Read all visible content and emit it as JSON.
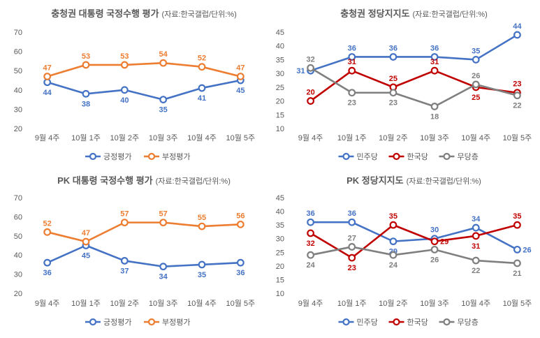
{
  "chart_data": [
    {
      "type": "line",
      "title": "충청권 대통령 국정수행 평가",
      "subtitle": "(자료:한국갤럽/단위:%)",
      "categories": [
        "9월 4주",
        "10월 1주",
        "10월 2주",
        "10월 3주",
        "10월 4주",
        "10월 5주"
      ],
      "ylim": [
        20,
        70
      ],
      "yticks": [
        20,
        30,
        40,
        50,
        60,
        70
      ],
      "series": [
        {
          "name": "긍정평가",
          "color": "#4472C4",
          "values": [
            44,
            38,
            40,
            35,
            41,
            45
          ],
          "label_pos": [
            "below",
            "below",
            "below",
            "below",
            "below",
            "below"
          ]
        },
        {
          "name": "부정평가",
          "color": "#ED7D31",
          "values": [
            47,
            53,
            53,
            54,
            52,
            47
          ],
          "label_pos": [
            "above",
            "above",
            "above",
            "above",
            "above",
            "above"
          ]
        }
      ],
      "legend": "bottom"
    },
    {
      "type": "line",
      "title": "충청권 정당지지도",
      "subtitle": "(자료:한국갤럽/단위:%)",
      "categories": [
        "9월 4주",
        "10월 1주",
        "10월 2주",
        "10월 3주",
        "10월 4주",
        "10월 5주"
      ],
      "ylim": [
        10,
        45
      ],
      "yticks": [
        10,
        15,
        20,
        25,
        30,
        35,
        40,
        45
      ],
      "series": [
        {
          "name": "민주당",
          "color": "#4472C4",
          "values": [
            31,
            36,
            36,
            36,
            35,
            44
          ],
          "label_pos": [
            "left",
            "above",
            "above",
            "above",
            "above",
            "above"
          ]
        },
        {
          "name": "한국당",
          "color": "#C00000",
          "values": [
            20,
            31,
            25,
            31,
            25,
            23
          ],
          "label_pos": [
            "above",
            "above",
            "above",
            "above",
            "below",
            "above"
          ]
        },
        {
          "name": "무당층",
          "color": "#7F7F7F",
          "values": [
            32,
            23,
            23,
            18,
            26,
            22
          ],
          "label_pos": [
            "above",
            "below",
            "below",
            "below",
            "above",
            "below"
          ]
        }
      ],
      "legend": "bottom"
    },
    {
      "type": "line",
      "title": "PK 대통령 국정수행 평가",
      "subtitle": "(자료:한국갤럽/단위:%)",
      "categories": [
        "9월 4주",
        "10월 1주",
        "10월 2주",
        "10월 3주",
        "10월 4주",
        "10월 5주"
      ],
      "ylim": [
        20,
        70
      ],
      "yticks": [
        20,
        30,
        40,
        50,
        60,
        70
      ],
      "series": [
        {
          "name": "긍정평가",
          "color": "#4472C4",
          "values": [
            36,
            45,
            37,
            34,
            35,
            36
          ],
          "label_pos": [
            "below",
            "below",
            "below",
            "below",
            "below",
            "below"
          ]
        },
        {
          "name": "부정평가",
          "color": "#ED7D31",
          "values": [
            52,
            47,
            57,
            57,
            55,
            56
          ],
          "label_pos": [
            "above",
            "above",
            "above",
            "above",
            "above",
            "above"
          ]
        }
      ],
      "legend": "bottom"
    },
    {
      "type": "line",
      "title": "PK 정당지지도",
      "subtitle": "(자료:한국갤럽/단위:%)",
      "categories": [
        "9월 4주",
        "10월 1주",
        "10월 2주",
        "10월 3주",
        "10월 4주",
        "10월 5주"
      ],
      "ylim": [
        10,
        45
      ],
      "yticks": [
        10,
        15,
        20,
        25,
        30,
        35,
        40,
        45
      ],
      "series": [
        {
          "name": "민주당",
          "color": "#4472C4",
          "values": [
            36,
            36,
            29,
            30,
            34,
            26
          ],
          "label_pos": [
            "above",
            "above",
            "below",
            "above",
            "above",
            "right"
          ]
        },
        {
          "name": "한국당",
          "color": "#C00000",
          "values": [
            32,
            23,
            35,
            29,
            31,
            35
          ],
          "label_pos": [
            "below",
            "below",
            "above",
            "right",
            "below",
            "above"
          ]
        },
        {
          "name": "무당층",
          "color": "#7F7F7F",
          "values": [
            24,
            27,
            24,
            26,
            22,
            21
          ],
          "label_pos": [
            "below",
            "above",
            "below",
            "below",
            "below",
            "below"
          ]
        }
      ],
      "legend": "bottom"
    }
  ]
}
